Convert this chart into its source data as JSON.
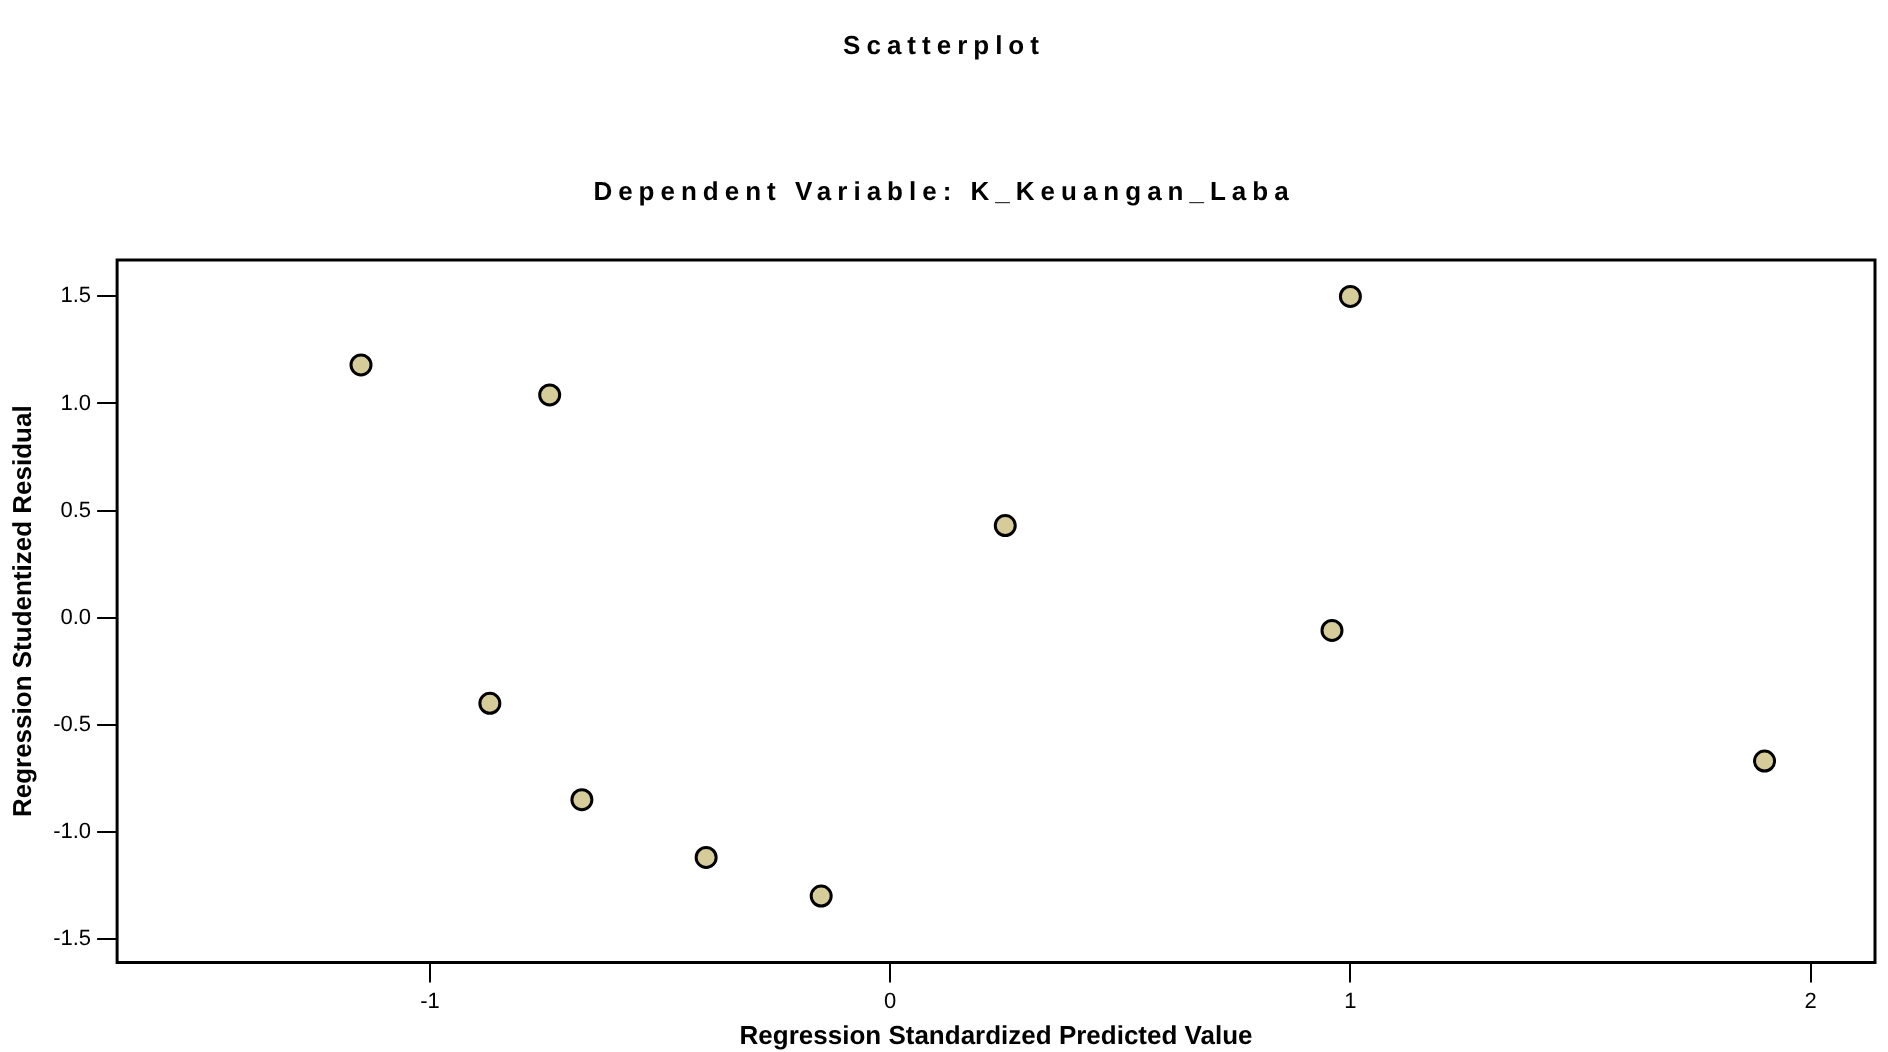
{
  "chart_data": {
    "type": "scatter",
    "title": "Scatterplot",
    "subtitle": "Dependent Variable: K_Keuangan_Laba",
    "xlabel": "Regression Standardized Predicted Value",
    "ylabel": "Regression Studentized Residual",
    "x": [
      -1.15,
      -0.74,
      -0.87,
      -0.67,
      -0.4,
      -0.15,
      0.25,
      1.0,
      0.96,
      1.9
    ],
    "values": [
      1.18,
      1.04,
      -0.4,
      -0.85,
      -1.12,
      -1.3,
      0.43,
      1.5,
      -0.06,
      -0.67
    ],
    "color": "#d6cc9a",
    "marker": "circle",
    "grid": false,
    "legend": false,
    "xlim": [
      -1.68,
      2.14
    ],
    "xticks": [
      -1,
      0,
      1,
      2
    ],
    "ylim": [
      -1.61,
      1.67
    ],
    "yticks": [
      {
        "value": -1.5,
        "label": "-1.5"
      },
      {
        "value": -1,
        "label": "-1.0"
      },
      {
        "value": -0.5,
        "label": "-0.5"
      },
      {
        "value": 0,
        "label": "0.0"
      },
      {
        "value": 0.5,
        "label": "0.5"
      },
      {
        "value": 1,
        "label": "1.0"
      },
      {
        "value": 1.5,
        "label": "1.5"
      }
    ]
  }
}
